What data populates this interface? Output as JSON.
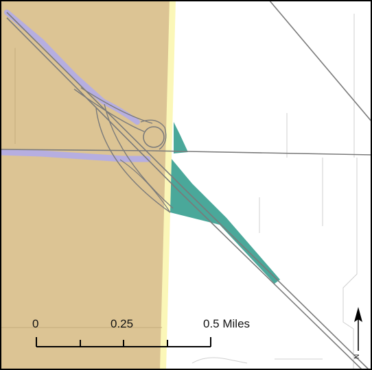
{
  "map": {
    "colors": {
      "background": "#ffffff",
      "tan_area": "#dcc494",
      "boundary_strip": "#fbf7b8",
      "teal_area": "#4aa89a",
      "lavender_shoulder": "#b6aee0",
      "road": "#7a7a7a",
      "minor_line": "#c9c9c9",
      "frame": "#000000"
    }
  },
  "scale_bar": {
    "label_0": "0",
    "label_mid": "0.25",
    "label_end": "0.5 Miles"
  },
  "north_arrow": {
    "letter": "N",
    "icon": "north-arrow-icon"
  }
}
